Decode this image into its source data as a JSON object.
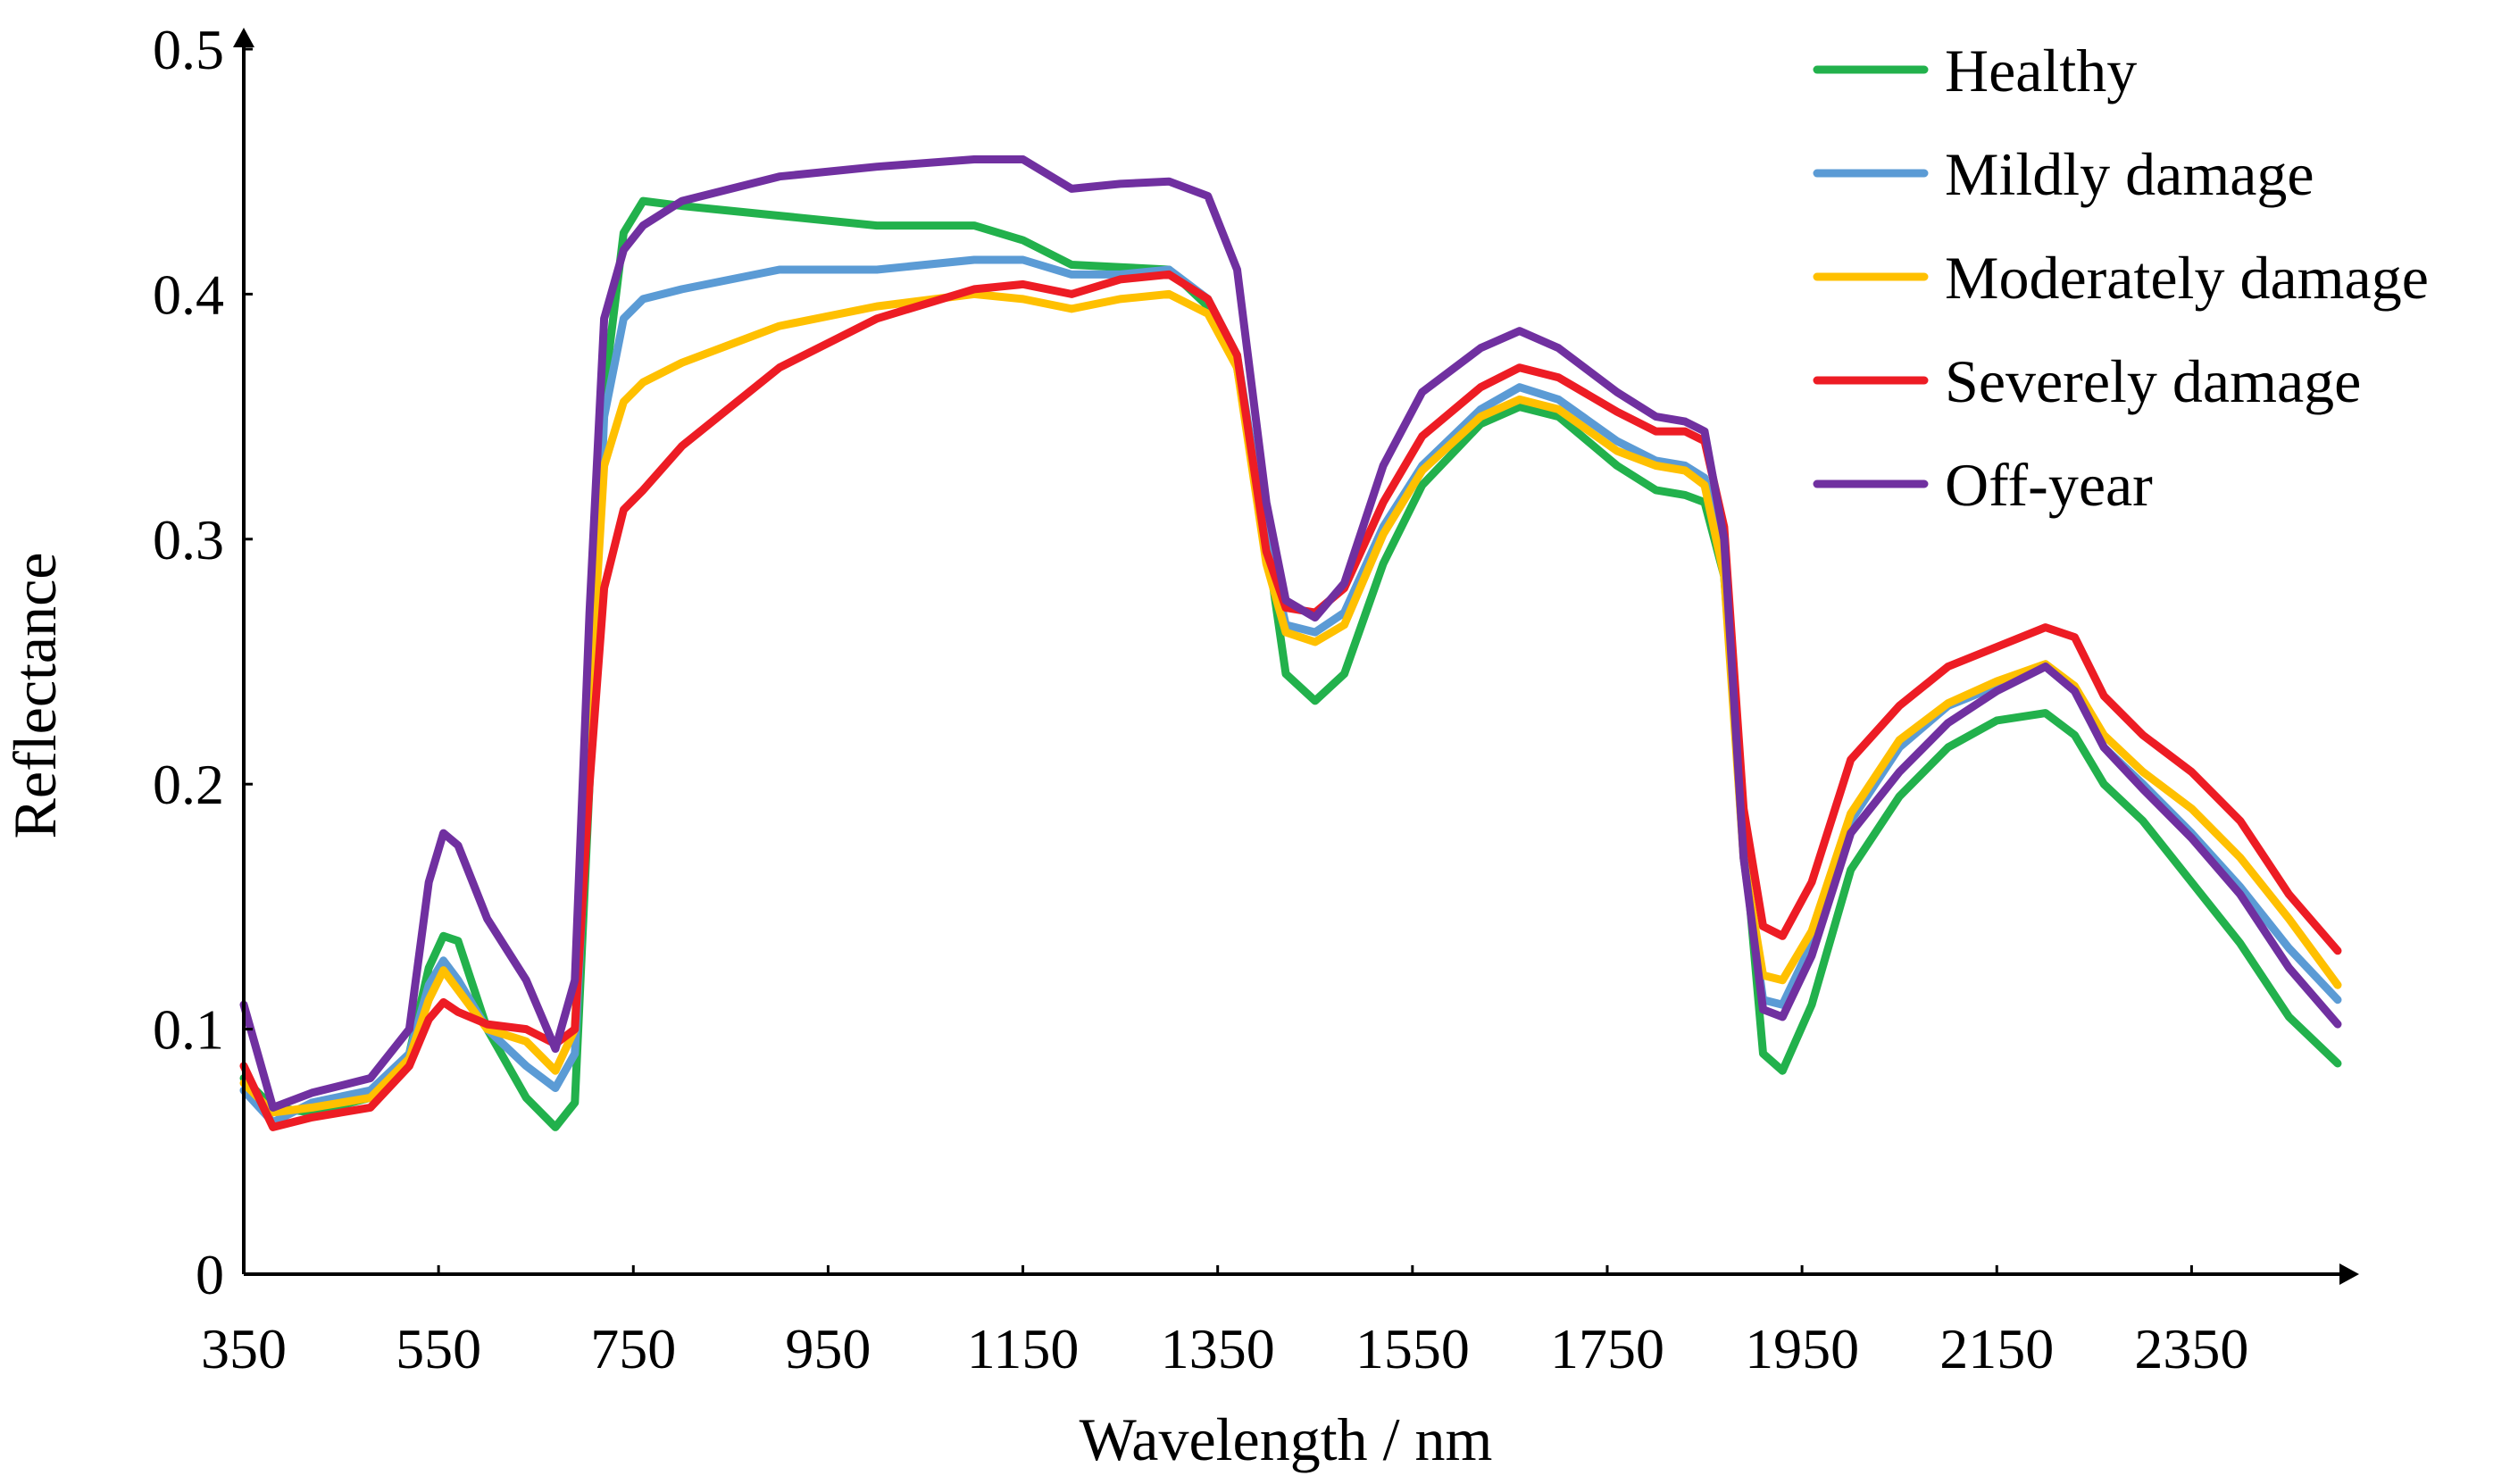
{
  "chart_data": {
    "type": "line",
    "title": "",
    "xlabel": "Wavelength / nm",
    "ylabel": "Reflectance",
    "xlim": [
      350,
      2500
    ],
    "ylim": [
      0,
      0.5
    ],
    "x_ticks": [
      350,
      550,
      750,
      950,
      1150,
      1350,
      1550,
      1750,
      1950,
      2150,
      2350
    ],
    "x_tick_labels": [
      "350",
      "550",
      "750",
      "950",
      "1150",
      "1350",
      "1550",
      "1750",
      "1950",
      "2150",
      "2350"
    ],
    "y_ticks": [
      0,
      0.1,
      0.2,
      0.3,
      0.4,
      0.5
    ],
    "y_tick_labels": [
      "0",
      "0.1",
      "0.2",
      "0.3",
      "0.4",
      "0.5"
    ],
    "grid": false,
    "legend_position": "top-right",
    "x": [
      350,
      380,
      420,
      480,
      520,
      540,
      555,
      570,
      600,
      640,
      670,
      690,
      705,
      720,
      740,
      760,
      800,
      900,
      1000,
      1100,
      1150,
      1200,
      1250,
      1300,
      1340,
      1370,
      1400,
      1420,
      1450,
      1480,
      1520,
      1560,
      1620,
      1660,
      1700,
      1760,
      1800,
      1830,
      1850,
      1870,
      1890,
      1910,
      1930,
      1960,
      2000,
      2050,
      2100,
      2150,
      2200,
      2230,
      2260,
      2300,
      2350,
      2400,
      2450,
      2500
    ],
    "series": [
      {
        "name": "Healthy",
        "color": "#22b14c",
        "values": [
          0.08,
          0.068,
          0.066,
          0.072,
          0.09,
          0.125,
          0.138,
          0.136,
          0.1,
          0.072,
          0.06,
          0.07,
          0.2,
          0.36,
          0.425,
          0.438,
          0.436,
          0.432,
          0.428,
          0.428,
          0.422,
          0.412,
          0.411,
          0.41,
          0.395,
          0.37,
          0.3,
          0.245,
          0.234,
          0.245,
          0.29,
          0.322,
          0.347,
          0.354,
          0.35,
          0.33,
          0.32,
          0.318,
          0.315,
          0.285,
          0.18,
          0.09,
          0.083,
          0.11,
          0.165,
          0.195,
          0.215,
          0.226,
          0.229,
          0.22,
          0.2,
          0.185,
          0.16,
          0.135,
          0.105,
          0.086
        ]
      },
      {
        "name": "Mildly damage",
        "color": "#5b9bd5",
        "values": [
          0.075,
          0.062,
          0.07,
          0.075,
          0.09,
          0.118,
          0.128,
          0.12,
          0.1,
          0.085,
          0.076,
          0.09,
          0.21,
          0.35,
          0.39,
          0.398,
          0.402,
          0.41,
          0.41,
          0.414,
          0.414,
          0.408,
          0.408,
          0.41,
          0.398,
          0.375,
          0.3,
          0.265,
          0.262,
          0.27,
          0.305,
          0.33,
          0.353,
          0.362,
          0.357,
          0.34,
          0.332,
          0.33,
          0.325,
          0.29,
          0.17,
          0.112,
          0.11,
          0.135,
          0.185,
          0.215,
          0.232,
          0.24,
          0.248,
          0.238,
          0.215,
          0.2,
          0.18,
          0.158,
          0.133,
          0.112
        ]
      },
      {
        "name": "Moderately damage",
        "color": "#ffc000",
        "values": [
          0.078,
          0.066,
          0.068,
          0.072,
          0.088,
          0.112,
          0.124,
          0.116,
          0.1,
          0.095,
          0.083,
          0.1,
          0.23,
          0.33,
          0.356,
          0.364,
          0.372,
          0.387,
          0.395,
          0.4,
          0.398,
          0.394,
          0.398,
          0.4,
          0.392,
          0.37,
          0.29,
          0.262,
          0.258,
          0.265,
          0.302,
          0.328,
          0.35,
          0.357,
          0.353,
          0.336,
          0.33,
          0.328,
          0.322,
          0.285,
          0.17,
          0.122,
          0.12,
          0.14,
          0.188,
          0.218,
          0.233,
          0.242,
          0.249,
          0.24,
          0.22,
          0.205,
          0.19,
          0.17,
          0.145,
          0.118
        ]
      },
      {
        "name": "Severely damage",
        "color": "#ed1c24",
        "values": [
          0.085,
          0.06,
          0.064,
          0.068,
          0.085,
          0.104,
          0.111,
          0.107,
          0.102,
          0.1,
          0.094,
          0.1,
          0.2,
          0.28,
          0.312,
          0.32,
          0.338,
          0.37,
          0.39,
          0.402,
          0.404,
          0.4,
          0.406,
          0.408,
          0.398,
          0.375,
          0.295,
          0.272,
          0.27,
          0.28,
          0.315,
          0.342,
          0.362,
          0.37,
          0.366,
          0.352,
          0.344,
          0.344,
          0.34,
          0.305,
          0.19,
          0.142,
          0.138,
          0.16,
          0.21,
          0.232,
          0.248,
          0.256,
          0.264,
          0.26,
          0.236,
          0.22,
          0.205,
          0.185,
          0.155,
          0.132
        ]
      },
      {
        "name": "Off-year",
        "color": "#7030a0",
        "values": [
          0.11,
          0.068,
          0.074,
          0.08,
          0.1,
          0.16,
          0.18,
          0.175,
          0.145,
          0.12,
          0.092,
          0.12,
          0.27,
          0.39,
          0.418,
          0.428,
          0.438,
          0.448,
          0.452,
          0.455,
          0.455,
          0.443,
          0.445,
          0.446,
          0.44,
          0.41,
          0.315,
          0.275,
          0.268,
          0.282,
          0.33,
          0.36,
          0.378,
          0.385,
          0.378,
          0.36,
          0.35,
          0.348,
          0.344,
          0.3,
          0.17,
          0.108,
          0.105,
          0.13,
          0.18,
          0.205,
          0.225,
          0.238,
          0.248,
          0.238,
          0.215,
          0.198,
          0.178,
          0.155,
          0.125,
          0.102
        ]
      }
    ]
  }
}
